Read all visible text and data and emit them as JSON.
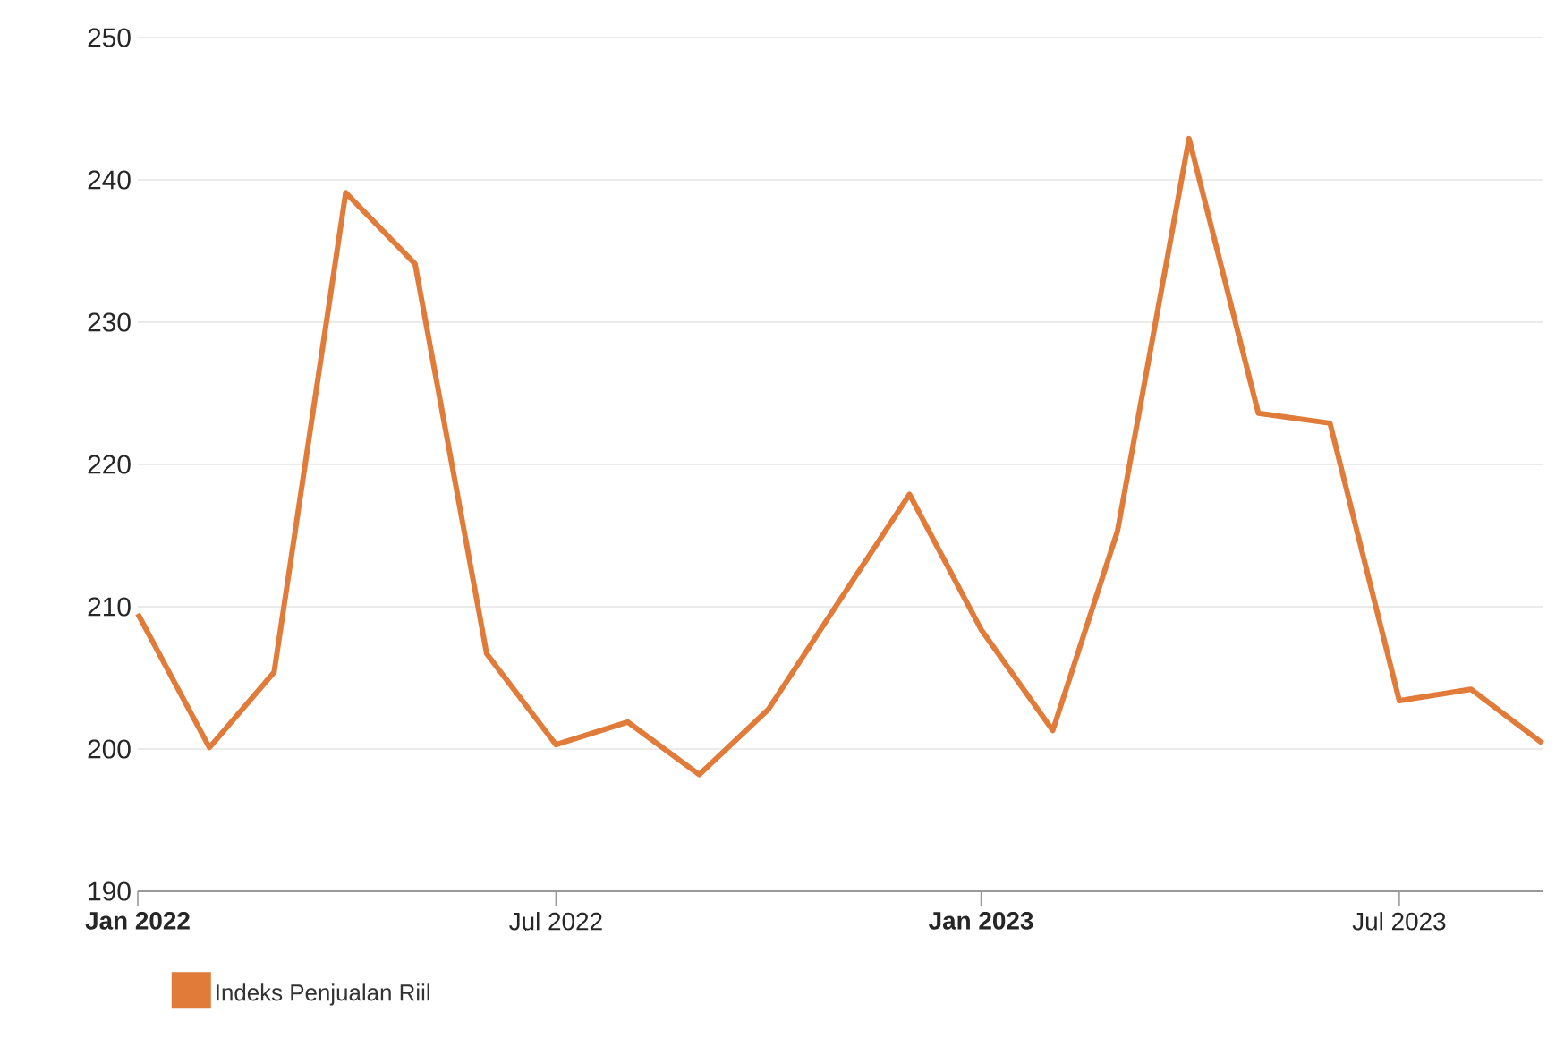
{
  "chart_data": {
    "type": "line",
    "x": [
      "2022-01",
      "2022-02",
      "2022-03",
      "2022-04",
      "2022-05",
      "2022-06",
      "2022-07",
      "2022-08",
      "2022-09",
      "2022-10",
      "2022-11",
      "2022-12",
      "2023-01",
      "2023-02",
      "2023-03",
      "2023-04",
      "2023-05",
      "2023-06",
      "2023-07",
      "2023-08",
      "2023-09"
    ],
    "series": [
      {
        "name": "Indeks Penjualan Riil",
        "color": "#e07b39",
        "values": [
          209.5,
          200.1,
          205.4,
          239.1,
          234.1,
          206.7,
          200.3,
          201.9,
          198.2,
          202.8,
          210.5,
          217.9,
          208.4,
          201.3,
          215.3,
          242.9,
          223.6,
          222.9,
          203.4,
          204.2,
          200.4
        ]
      }
    ],
    "xlim": [
      "2022-01",
      "2023-09"
    ],
    "xticks": [
      {
        "value": "2022-01",
        "label": "Jan 2022"
      },
      {
        "value": "2022-07",
        "label": "Jul 2022"
      },
      {
        "value": "2023-01",
        "label": "Jan 2023"
      },
      {
        "value": "2023-07",
        "label": "Jul 2023"
      }
    ],
    "ylim": [
      190,
      250
    ],
    "yticks": [
      190,
      200,
      210,
      220,
      230,
      240,
      250
    ],
    "grid": "y",
    "legend": "bottom left",
    "marker": "none",
    "line_style": "solid"
  }
}
